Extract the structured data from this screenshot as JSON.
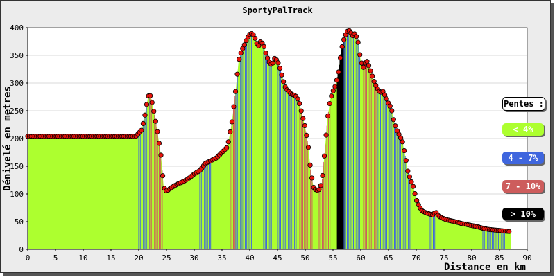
{
  "chart_data": {
    "type": "area",
    "title": "SportyPalTrack",
    "xlabel": "Distance en km",
    "ylabel": "Dénivelé en metres",
    "xlim": [
      0,
      90
    ],
    "ylim": [
      0,
      400
    ],
    "x_ticks": [
      0,
      5,
      10,
      15,
      20,
      25,
      30,
      35,
      40,
      45,
      50,
      55,
      60,
      65,
      70,
      75,
      80,
      85,
      90
    ],
    "y_ticks": [
      0,
      50,
      100,
      150,
      200,
      250,
      300,
      350,
      400
    ],
    "grid": "horizontal",
    "fill_color": "#adff2f",
    "point_color": "#e8140c",
    "legend": {
      "title": "Pentes :",
      "placement": "right",
      "items": [
        {
          "label": "< 4%",
          "color": "#adff2f",
          "text_color": "#ffffff"
        },
        {
          "label": "4 - 7%",
          "color": "#3f66de",
          "text_color": "#ffffff"
        },
        {
          "label": "7 - 10%",
          "color": "#cd5c5c",
          "text_color": "#ffffff"
        },
        {
          "label": "> 10%",
          "color": "#000000",
          "text_color": "#ffffff"
        }
      ]
    },
    "profile": [
      [
        0,
        204
      ],
      [
        5,
        204
      ],
      [
        10,
        204
      ],
      [
        15,
        204
      ],
      [
        19.5,
        204
      ],
      [
        20.5,
        215
      ],
      [
        21.0,
        235
      ],
      [
        21.5,
        265
      ],
      [
        21.9,
        283
      ],
      [
        22.3,
        270
      ],
      [
        22.8,
        245
      ],
      [
        23.4,
        210
      ],
      [
        24.0,
        170
      ],
      [
        24.5,
        112
      ],
      [
        25.0,
        105
      ],
      [
        26,
        112
      ],
      [
        27,
        118
      ],
      [
        28,
        122
      ],
      [
        29,
        128
      ],
      [
        30,
        136
      ],
      [
        31,
        142
      ],
      [
        32,
        155
      ],
      [
        33,
        160
      ],
      [
        34,
        165
      ],
      [
        35,
        175
      ],
      [
        36,
        185
      ],
      [
        36.8,
        230
      ],
      [
        37.5,
        290
      ],
      [
        38,
        340
      ],
      [
        38.5,
        358
      ],
      [
        39,
        368
      ],
      [
        39.5,
        380
      ],
      [
        40,
        388
      ],
      [
        40.5,
        390
      ],
      [
        41,
        380
      ],
      [
        41.5,
        365
      ],
      [
        42,
        376
      ],
      [
        42.5,
        368
      ],
      [
        43,
        350
      ],
      [
        43.5,
        338
      ],
      [
        44,
        332
      ],
      [
        44.5,
        345
      ],
      [
        45,
        340
      ],
      [
        45.5,
        325
      ],
      [
        46,
        305
      ],
      [
        46.5,
        290
      ],
      [
        47,
        285
      ],
      [
        47.5,
        280
      ],
      [
        48,
        278
      ],
      [
        48.5,
        275
      ],
      [
        49,
        262
      ],
      [
        49.5,
        240
      ],
      [
        50,
        220
      ],
      [
        50.5,
        190
      ],
      [
        51,
        140
      ],
      [
        51.5,
        112
      ],
      [
        52,
        106
      ],
      [
        52.5,
        108
      ],
      [
        53,
        120
      ],
      [
        53.5,
        175
      ],
      [
        54,
        235
      ],
      [
        54.5,
        270
      ],
      [
        55,
        285
      ],
      [
        55.5,
        297
      ],
      [
        56,
        320
      ],
      [
        56.5,
        360
      ],
      [
        57,
        380
      ],
      [
        57.5,
        393
      ],
      [
        58,
        395
      ],
      [
        58.5,
        385
      ],
      [
        59,
        390
      ],
      [
        59.5,
        375
      ],
      [
        60,
        340
      ],
      [
        60.5,
        328
      ],
      [
        61,
        342
      ],
      [
        61.5,
        330
      ],
      [
        62,
        315
      ],
      [
        62.5,
        300
      ],
      [
        63,
        290
      ],
      [
        63.5,
        283
      ],
      [
        64,
        285
      ],
      [
        64.5,
        275
      ],
      [
        65,
        263
      ],
      [
        65.5,
        255
      ],
      [
        66,
        230
      ],
      [
        66.5,
        215
      ],
      [
        67,
        205
      ],
      [
        67.5,
        195
      ],
      [
        68,
        170
      ],
      [
        68.5,
        140
      ],
      [
        69,
        125
      ],
      [
        69.5,
        112
      ],
      [
        70,
        90
      ],
      [
        70.5,
        78
      ],
      [
        71,
        70
      ],
      [
        71.5,
        67
      ],
      [
        72,
        65
      ],
      [
        73,
        62
      ],
      [
        73.5,
        68
      ],
      [
        74,
        60
      ],
      [
        75,
        55
      ],
      [
        76,
        52
      ],
      [
        77,
        50
      ],
      [
        78,
        47
      ],
      [
        79,
        45
      ],
      [
        80,
        43
      ],
      [
        81,
        41
      ],
      [
        82,
        38
      ],
      [
        83,
        36
      ],
      [
        84,
        35
      ],
      [
        85,
        34
      ],
      [
        86,
        33
      ],
      [
        87,
        32
      ]
    ],
    "slope_bands": [
      {
        "from": 20.0,
        "to": 22.0,
        "class": "4 - 7%"
      },
      {
        "from": 22.0,
        "to": 24.5,
        "class": "7 - 10%"
      },
      {
        "from": 31.0,
        "to": 33.0,
        "class": "4 - 7%"
      },
      {
        "from": 36.5,
        "to": 37.5,
        "class": "7 - 10%"
      },
      {
        "from": 37.5,
        "to": 40.5,
        "class": "4 - 7%"
      },
      {
        "from": 42.5,
        "to": 44.0,
        "class": "4 - 7%"
      },
      {
        "from": 45.0,
        "to": 48.5,
        "class": "4 - 7%"
      },
      {
        "from": 49.0,
        "to": 51.5,
        "class": "7 - 10%"
      },
      {
        "from": 52.5,
        "to": 54.5,
        "class": "7 - 10%"
      },
      {
        "from": 55.8,
        "to": 57.0,
        "class": "> 10%"
      },
      {
        "from": 57.0,
        "to": 60.0,
        "class": "4 - 7%"
      },
      {
        "from": 60.5,
        "to": 63.0,
        "class": "7 - 10%"
      },
      {
        "from": 63.0,
        "to": 65.5,
        "class": "4 - 7%"
      },
      {
        "from": 65.5,
        "to": 69.0,
        "class": "4 - 7%"
      },
      {
        "from": 72.5,
        "to": 73.5,
        "class": "4 - 7%"
      },
      {
        "from": 82.0,
        "to": 86.0,
        "class": "4 - 7%"
      }
    ]
  }
}
